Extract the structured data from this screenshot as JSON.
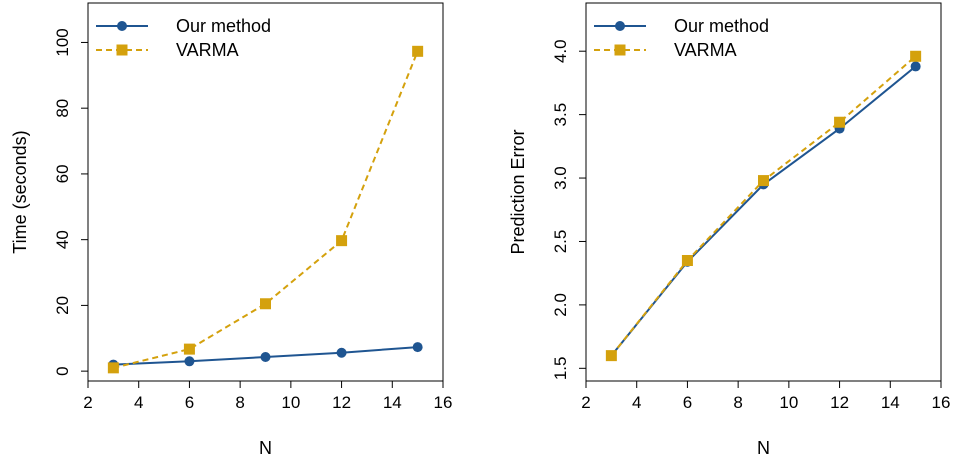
{
  "chart_data": [
    {
      "type": "line",
      "xlabel": "N",
      "ylabel": "Time (seconds)",
      "xlim": [
        2,
        16
      ],
      "ylim": [
        -3,
        112
      ],
      "xticks": [
        2,
        4,
        6,
        8,
        10,
        12,
        14,
        16
      ],
      "yticks": [
        0,
        20,
        40,
        60,
        80,
        100
      ],
      "legend": "top-left",
      "grid": false,
      "series": [
        {
          "name": "Our method",
          "color": "#1f5591",
          "marker": "circle",
          "dash": "solid",
          "x": [
            3,
            6,
            9,
            12,
            15
          ],
          "y": [
            2.0,
            3.0,
            4.3,
            5.6,
            7.3
          ]
        },
        {
          "name": "VARMA",
          "color": "#d4a10d",
          "marker": "square",
          "dash": "dashed",
          "x": [
            3,
            6,
            9,
            12,
            15
          ],
          "y": [
            1.0,
            6.7,
            20.5,
            39.7,
            97.3
          ]
        }
      ]
    },
    {
      "type": "line",
      "xlabel": "N",
      "ylabel": "Prediction Error",
      "xlim": [
        2,
        16
      ],
      "ylim": [
        1.4,
        4.38
      ],
      "xticks": [
        2,
        4,
        6,
        8,
        10,
        12,
        14,
        16
      ],
      "yticks": [
        1.5,
        2.0,
        2.5,
        3.0,
        3.5,
        4.0
      ],
      "legend": "top-left",
      "grid": false,
      "series": [
        {
          "name": "Our method",
          "color": "#1f5591",
          "marker": "circle",
          "dash": "solid",
          "x": [
            3,
            6,
            9,
            12,
            15
          ],
          "y": [
            1.6,
            2.34,
            2.95,
            3.39,
            3.88
          ]
        },
        {
          "name": "VARMA",
          "color": "#d4a10d",
          "marker": "square",
          "dash": "dashed",
          "x": [
            3,
            6,
            9,
            12,
            15
          ],
          "y": [
            1.6,
            2.35,
            2.98,
            3.44,
            3.96
          ]
        }
      ]
    }
  ]
}
